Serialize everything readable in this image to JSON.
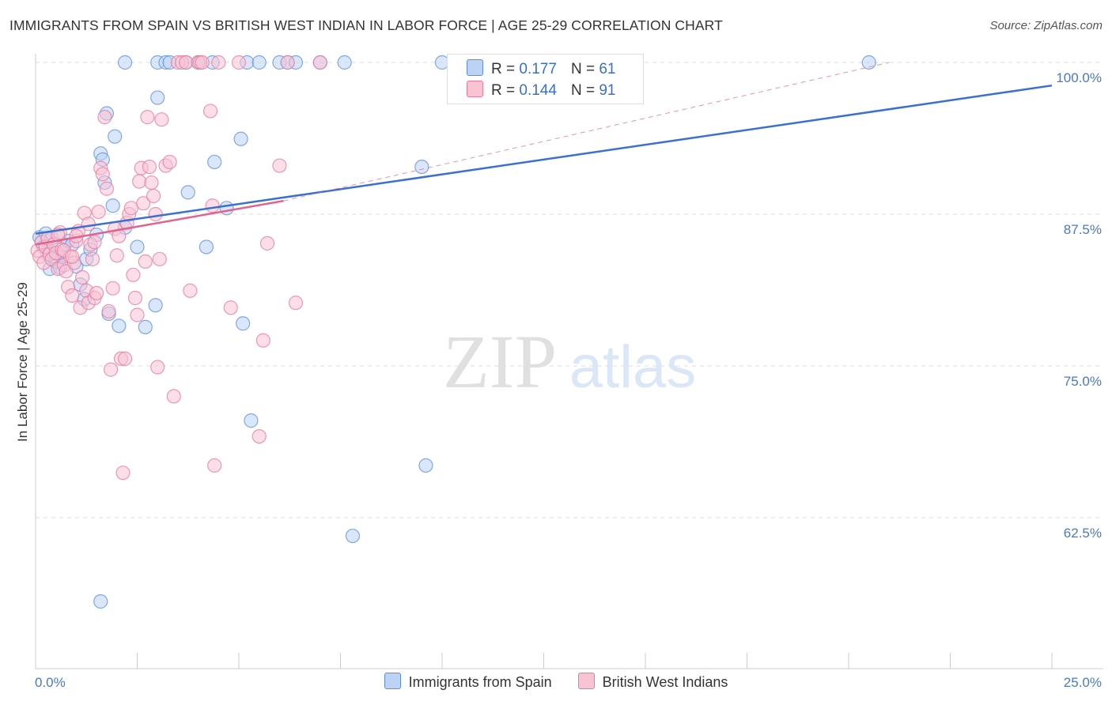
{
  "title": "IMMIGRANTS FROM SPAIN VS BRITISH WEST INDIAN IN LABOR FORCE | AGE 25-29 CORRELATION CHART",
  "source": "Source: ZipAtlas.com",
  "watermark": {
    "zip": "ZIP",
    "atlas": "atlas"
  },
  "legend": {
    "r_label": "R =",
    "n_label": "N =",
    "series1": {
      "r": "0.177",
      "n": "61"
    },
    "series2": {
      "r": "0.144",
      "n": "91"
    }
  },
  "colors": {
    "blue": "#5b8ee0",
    "blue_fill": "#bcd3f6",
    "blue_line": "#3a70d0",
    "pink": "#e8799c",
    "pink_fill": "#f8c3d3",
    "pink_line": "#e0648e",
    "tick_label": "#4a78cc",
    "grid": "#dddddd"
  },
  "chart_data": {
    "type": "scatter",
    "title": "IMMIGRANTS FROM SPAIN VS BRITISH WEST INDIAN IN LABOR FORCE | AGE 25-29 CORRELATION CHART",
    "xlabel": "",
    "ylabel": "In Labor Force | Age 25-29",
    "xlim": [
      0,
      25
    ],
    "ylim": [
      50,
      100
    ],
    "x_tick_labels": [
      "0.0%",
      "25.0%"
    ],
    "y_ticks": [
      62.5,
      75.0,
      87.5,
      100.0
    ],
    "y_tick_labels": [
      "62.5%",
      "75.0%",
      "87.5%",
      "100.0%"
    ],
    "series": [
      {
        "name": "Immigrants from Spain",
        "color": "blue",
        "trend": {
          "x": [
            0,
            25
          ],
          "y": [
            85.9,
            98.1
          ]
        },
        "points": [
          [
            0.1,
            85.6
          ],
          [
            0.15,
            85.2
          ],
          [
            0.2,
            84.8
          ],
          [
            0.25,
            85.9
          ],
          [
            0.3,
            84.2
          ],
          [
            0.35,
            83.0
          ],
          [
            0.4,
            85.5
          ],
          [
            0.45,
            84.0
          ],
          [
            0.5,
            83.6
          ],
          [
            0.55,
            84.3
          ],
          [
            0.6,
            83.1
          ],
          [
            0.65,
            84.0
          ],
          [
            0.7,
            85.0
          ],
          [
            0.8,
            85.3
          ],
          [
            0.9,
            85.0
          ],
          [
            1.0,
            83.2
          ],
          [
            1.1,
            81.7
          ],
          [
            1.2,
            80.5
          ],
          [
            1.25,
            83.8
          ],
          [
            1.35,
            84.6
          ],
          [
            1.5,
            85.8
          ],
          [
            1.6,
            92.5
          ],
          [
            1.65,
            92.0
          ],
          [
            1.7,
            90.1
          ],
          [
            1.75,
            95.8
          ],
          [
            1.8,
            79.3
          ],
          [
            1.9,
            88.2
          ],
          [
            1.95,
            93.9
          ],
          [
            2.05,
            78.3
          ],
          [
            2.2,
            86.4
          ],
          [
            2.5,
            84.8
          ],
          [
            2.7,
            78.2
          ],
          [
            2.95,
            80.0
          ],
          [
            3.0,
            97.1
          ],
          [
            3.0,
            100.0
          ],
          [
            3.2,
            100.0
          ],
          [
            3.3,
            100.0
          ],
          [
            3.7,
            100.0
          ],
          [
            3.75,
            89.3
          ],
          [
            4.0,
            100.0
          ],
          [
            4.2,
            84.8
          ],
          [
            4.35,
            100.0
          ],
          [
            4.4,
            91.8
          ],
          [
            4.7,
            88.0
          ],
          [
            5.05,
            93.7
          ],
          [
            5.1,
            78.5
          ],
          [
            5.2,
            100.0
          ],
          [
            5.3,
            70.5
          ],
          [
            5.5,
            100.0
          ],
          [
            6.0,
            100.0
          ],
          [
            6.2,
            100.0
          ],
          [
            6.4,
            100.0
          ],
          [
            7.0,
            100.0
          ],
          [
            7.6,
            100.0
          ],
          [
            7.8,
            61.0
          ],
          [
            9.5,
            91.4
          ],
          [
            9.6,
            66.8
          ],
          [
            10.0,
            100.0
          ],
          [
            20.5,
            100.0
          ],
          [
            1.6,
            55.6
          ],
          [
            2.2,
            100.0
          ]
        ]
      },
      {
        "name": "British West Indians",
        "color": "pink",
        "trend": {
          "x": [
            0,
            6.1
          ],
          "y": [
            85.0,
            88.6
          ]
        },
        "dashed_extension": {
          "x": [
            6.1,
            21.0
          ],
          "y": [
            88.6,
            100.0
          ]
        },
        "points": [
          [
            0.05,
            84.5
          ],
          [
            0.1,
            84.0
          ],
          [
            0.15,
            85.2
          ],
          [
            0.2,
            83.5
          ],
          [
            0.25,
            84.8
          ],
          [
            0.3,
            85.5
          ],
          [
            0.35,
            84.2
          ],
          [
            0.4,
            83.8
          ],
          [
            0.45,
            85.0
          ],
          [
            0.5,
            84.3
          ],
          [
            0.55,
            83.0
          ],
          [
            0.6,
            86.0
          ],
          [
            0.65,
            84.6
          ],
          [
            0.7,
            83.3
          ],
          [
            0.75,
            82.8
          ],
          [
            0.8,
            81.5
          ],
          [
            0.85,
            84.0
          ],
          [
            0.9,
            80.8
          ],
          [
            0.95,
            83.5
          ],
          [
            1.0,
            85.3
          ],
          [
            1.05,
            86.1
          ],
          [
            1.1,
            79.8
          ],
          [
            1.15,
            82.3
          ],
          [
            1.2,
            87.6
          ],
          [
            1.25,
            81.2
          ],
          [
            1.3,
            80.2
          ],
          [
            1.35,
            85.0
          ],
          [
            1.4,
            83.8
          ],
          [
            1.45,
            80.6
          ],
          [
            1.5,
            81.0
          ],
          [
            1.55,
            87.7
          ],
          [
            1.6,
            91.3
          ],
          [
            1.65,
            90.8
          ],
          [
            1.7,
            95.5
          ],
          [
            1.75,
            89.6
          ],
          [
            1.8,
            79.5
          ],
          [
            1.85,
            74.7
          ],
          [
            1.9,
            81.4
          ],
          [
            1.95,
            86.3
          ],
          [
            2.0,
            84.1
          ],
          [
            2.05,
            85.7
          ],
          [
            2.1,
            75.6
          ],
          [
            2.15,
            66.2
          ],
          [
            2.2,
            75.6
          ],
          [
            2.25,
            86.8
          ],
          [
            2.3,
            87.5
          ],
          [
            2.35,
            88.0
          ],
          [
            2.4,
            82.5
          ],
          [
            2.45,
            80.6
          ],
          [
            2.5,
            79.2
          ],
          [
            2.55,
            90.2
          ],
          [
            2.6,
            91.3
          ],
          [
            2.65,
            88.4
          ],
          [
            2.7,
            83.6
          ],
          [
            2.75,
            95.5
          ],
          [
            2.8,
            91.4
          ],
          [
            2.85,
            90.1
          ],
          [
            2.9,
            89.0
          ],
          [
            2.95,
            87.5
          ],
          [
            3.0,
            74.9
          ],
          [
            3.05,
            83.8
          ],
          [
            3.1,
            95.3
          ],
          [
            3.2,
            91.5
          ],
          [
            3.3,
            91.8
          ],
          [
            3.4,
            72.5
          ],
          [
            3.5,
            100.0
          ],
          [
            3.6,
            100.0
          ],
          [
            3.7,
            100.0
          ],
          [
            3.8,
            81.2
          ],
          [
            4.0,
            100.0
          ],
          [
            4.05,
            100.0
          ],
          [
            4.1,
            100.0
          ],
          [
            4.3,
            96.0
          ],
          [
            4.35,
            88.2
          ],
          [
            4.4,
            66.8
          ],
          [
            4.5,
            100.0
          ],
          [
            4.8,
            79.8
          ],
          [
            5.0,
            100.0
          ],
          [
            5.5,
            69.2
          ],
          [
            5.6,
            77.1
          ],
          [
            5.7,
            85.1
          ],
          [
            6.0,
            91.5
          ],
          [
            6.2,
            100.0
          ],
          [
            6.4,
            80.2
          ],
          [
            7.0,
            100.0
          ],
          [
            0.55,
            85.8
          ],
          [
            0.7,
            84.5
          ],
          [
            0.9,
            84.0
          ],
          [
            1.0,
            85.7
          ],
          [
            1.3,
            86.7
          ],
          [
            1.45,
            85.2
          ]
        ]
      }
    ]
  },
  "bottom_legend": {
    "series1": "Immigrants from Spain",
    "series2": "British West Indians"
  }
}
